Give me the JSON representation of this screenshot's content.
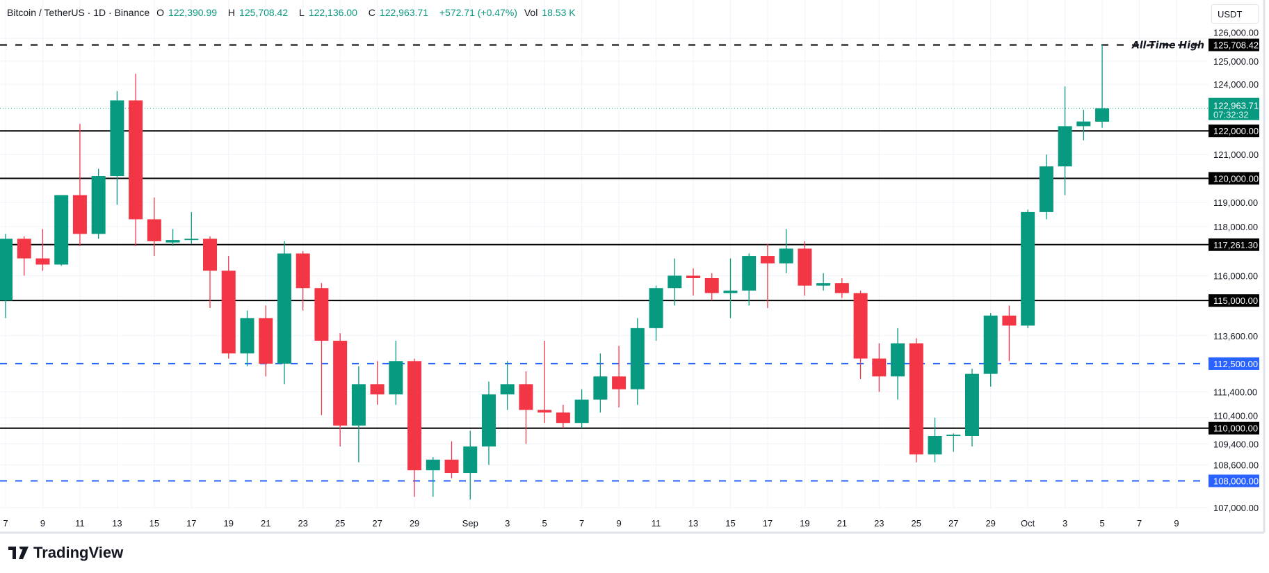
{
  "header": {
    "symbol": "Bitcoin / TetherUS · 1D · Binance",
    "open_label": "O",
    "open": "122,390.99",
    "high_label": "H",
    "high": "125,708.42",
    "low_label": "L",
    "low": "122,136.00",
    "close_label": "C",
    "close": "122,963.71",
    "change": "+572.71 (+0.47%)",
    "vol_label": "Vol",
    "vol": "18.53 K"
  },
  "currency_button": "USDT",
  "brand": "TradingView",
  "colors": {
    "up": "#089981",
    "down": "#f23645",
    "level": "#000000",
    "support": "#2962ff",
    "grid": "#f0f3fa"
  },
  "chart_data": {
    "type": "candlestick",
    "title": "Bitcoin / TetherUS · 1D · Binance",
    "scale": "log",
    "ylim": [
      107000,
      126000
    ],
    "start_date": "Aug 7",
    "x_ticks": [
      {
        "day": 0,
        "label": "7"
      },
      {
        "day": 2,
        "label": "9"
      },
      {
        "day": 4,
        "label": "11"
      },
      {
        "day": 6,
        "label": "13"
      },
      {
        "day": 8,
        "label": "15"
      },
      {
        "day": 10,
        "label": "17"
      },
      {
        "day": 12,
        "label": "19"
      },
      {
        "day": 14,
        "label": "21"
      },
      {
        "day": 16,
        "label": "23"
      },
      {
        "day": 18,
        "label": "25"
      },
      {
        "day": 20,
        "label": "27"
      },
      {
        "day": 22,
        "label": "29"
      },
      {
        "day": 25,
        "label": "Sep"
      },
      {
        "day": 27,
        "label": "3"
      },
      {
        "day": 29,
        "label": "5"
      },
      {
        "day": 31,
        "label": "7"
      },
      {
        "day": 33,
        "label": "9"
      },
      {
        "day": 35,
        "label": "11"
      },
      {
        "day": 37,
        "label": "13"
      },
      {
        "day": 39,
        "label": "15"
      },
      {
        "day": 41,
        "label": "17"
      },
      {
        "day": 43,
        "label": "19"
      },
      {
        "day": 45,
        "label": "21"
      },
      {
        "day": 47,
        "label": "23"
      },
      {
        "day": 49,
        "label": "25"
      },
      {
        "day": 51,
        "label": "27"
      },
      {
        "day": 53,
        "label": "29"
      },
      {
        "day": 55,
        "label": "Oct"
      },
      {
        "day": 57,
        "label": "3"
      },
      {
        "day": 59,
        "label": "5"
      },
      {
        "day": 61,
        "label": "7"
      },
      {
        "day": 63,
        "label": "9"
      }
    ],
    "y_ticks": [
      {
        "value": 126000,
        "label": "126,000.00"
      },
      {
        "value": 125000,
        "label": "125,000.00"
      },
      {
        "value": 124000,
        "label": "124,000.00"
      },
      {
        "value": 121000,
        "label": "121,000.00"
      },
      {
        "value": 119000,
        "label": "119,000.00"
      },
      {
        "value": 118000,
        "label": "118,000.00"
      },
      {
        "value": 116000,
        "label": "116,000.00"
      },
      {
        "value": 113600,
        "label": "113,600.00"
      },
      {
        "value": 111400,
        "label": "111,400.00"
      },
      {
        "value": 110400,
        "label": "110,400.00"
      },
      {
        "value": 109400,
        "label": "109,400.00"
      },
      {
        "value": 108600,
        "label": "108,600.00"
      },
      {
        "value": 107000,
        "label": "107,000.00"
      }
    ],
    "levels": [
      {
        "value": 125708.42,
        "label": "125,708.42",
        "style": "dashed",
        "color": "#000000",
        "annotation": "All-Time High"
      },
      {
        "value": 122000,
        "label": "122,000.00",
        "style": "solid",
        "color": "#000000"
      },
      {
        "value": 120000,
        "label": "120,000.00",
        "style": "solid",
        "color": "#000000"
      },
      {
        "value": 117261.3,
        "label": "117,261.30",
        "style": "solid",
        "color": "#000000"
      },
      {
        "value": 115000,
        "label": "115,000.00",
        "style": "solid",
        "color": "#000000"
      },
      {
        "value": 112500,
        "label": "112,500.00",
        "style": "dashed",
        "color": "#2962ff"
      },
      {
        "value": 110000,
        "label": "110,000.00",
        "style": "solid",
        "color": "#000000"
      },
      {
        "value": 108000,
        "label": "108,000.00",
        "style": "dashed",
        "color": "#2962ff"
      }
    ],
    "last_price": {
      "value": 122963.71,
      "label": "122,963.71",
      "countdown": "07:32:32"
    },
    "candles": [
      [
        115000,
        117700,
        114300,
        117500
      ],
      [
        117500,
        117600,
        116000,
        116700
      ],
      [
        116700,
        117900,
        116200,
        116450
      ],
      [
        116450,
        119300,
        116400,
        119300
      ],
      [
        119300,
        122300,
        117200,
        117700
      ],
      [
        117700,
        120400,
        117500,
        120100
      ],
      [
        120100,
        123700,
        118900,
        123300
      ],
      [
        123300,
        124450,
        117200,
        118300
      ],
      [
        118300,
        119200,
        116800,
        117400
      ],
      [
        117350,
        117900,
        117200,
        117450
      ],
      [
        117450,
        118600,
        117300,
        117500
      ],
      [
        117500,
        117600,
        114700,
        116200
      ],
      [
        116200,
        116800,
        112700,
        112900
      ],
      [
        112900,
        114600,
        112400,
        114300
      ],
      [
        114300,
        114800,
        112000,
        112500
      ],
      [
        112500,
        117400,
        111700,
        116900
      ],
      [
        116900,
        117000,
        114600,
        115500
      ],
      [
        115500,
        115700,
        110500,
        113400
      ],
      [
        113400,
        113700,
        109300,
        110100
      ],
      [
        110100,
        112400,
        108700,
        111700
      ],
      [
        111700,
        112600,
        110900,
        111300
      ],
      [
        111300,
        113400,
        110900,
        112600
      ],
      [
        112600,
        112700,
        107400,
        108400
      ],
      [
        108400,
        108900,
        107400,
        108800
      ],
      [
        108800,
        109500,
        108100,
        108300
      ],
      [
        108300,
        109900,
        107300,
        109300
      ],
      [
        109300,
        111800,
        108600,
        111300
      ],
      [
        111300,
        112600,
        110700,
        111700
      ],
      [
        111700,
        112200,
        109400,
        110700
      ],
      [
        110700,
        113400,
        110200,
        110600
      ],
      [
        110600,
        110900,
        110000,
        110200
      ],
      [
        110200,
        111500,
        110000,
        111100
      ],
      [
        111100,
        112900,
        110600,
        112000
      ],
      [
        112000,
        113200,
        110800,
        111500
      ],
      [
        111500,
        114300,
        110900,
        113900
      ],
      [
        113900,
        115600,
        113400,
        115500
      ],
      [
        115500,
        116700,
        114800,
        116000
      ],
      [
        116000,
        116300,
        115200,
        115900
      ],
      [
        115900,
        116100,
        115000,
        115300
      ],
      [
        115300,
        116700,
        114300,
        115400
      ],
      [
        115400,
        116900,
        114800,
        116800
      ],
      [
        116800,
        117300,
        114700,
        116500
      ],
      [
        116500,
        117900,
        116100,
        117100
      ],
      [
        117100,
        117400,
        115200,
        115600
      ],
      [
        115600,
        116100,
        115400,
        115700
      ],
      [
        115700,
        115900,
        115100,
        115300
      ],
      [
        115300,
        115400,
        111900,
        112700
      ],
      [
        112700,
        113300,
        111400,
        112000
      ],
      [
        112000,
        113900,
        111100,
        113300
      ],
      [
        113300,
        113500,
        108700,
        109000
      ],
      [
        109000,
        110400,
        108700,
        109700
      ],
      [
        109700,
        109800,
        109100,
        109750
      ],
      [
        109700,
        112300,
        109300,
        112100
      ],
      [
        112100,
        114500,
        111600,
        114400
      ],
      [
        114400,
        114800,
        112600,
        114000
      ],
      [
        114000,
        118700,
        113900,
        118600
      ],
      [
        118600,
        121000,
        118300,
        120500
      ],
      [
        120500,
        123900,
        119300,
        122200
      ],
      [
        122200,
        122900,
        121600,
        122400
      ],
      [
        122390.99,
        125708.42,
        122136,
        122963.71
      ]
    ]
  }
}
